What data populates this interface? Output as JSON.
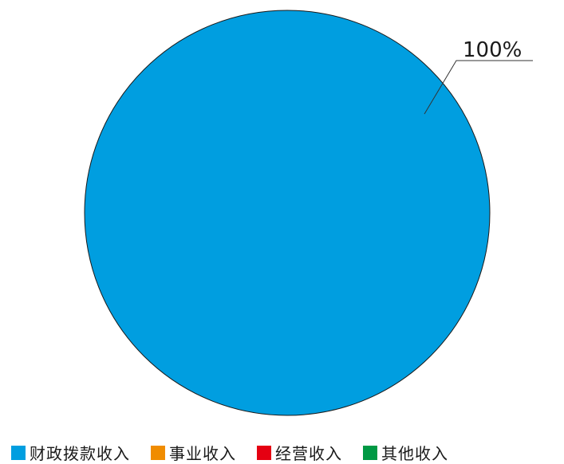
{
  "chart_data": {
    "type": "pie",
    "title": "",
    "categories": [
      "财政拨款收入",
      "事业收入",
      "经营收入",
      "其他收入"
    ],
    "values": [
      100,
      0,
      0,
      0
    ],
    "colors": [
      "#009ee0",
      "#f08c00",
      "#e50012",
      "#009944"
    ],
    "data_labels": [
      "100%",
      "",
      "",
      ""
    ],
    "legend_position": "bottom"
  }
}
